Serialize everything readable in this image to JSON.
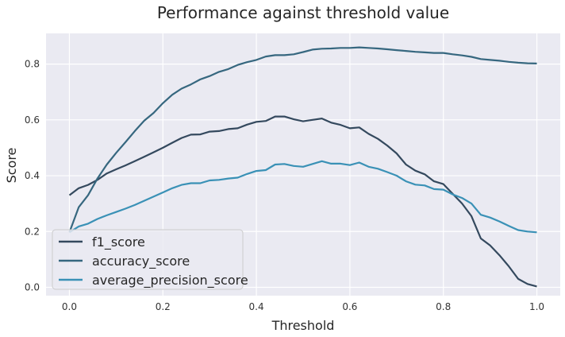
{
  "chart_data": {
    "type": "line",
    "title": "Performance against threshold value",
    "xlabel": "Threshold",
    "ylabel": "Score",
    "xlim": [
      -0.05,
      1.05
    ],
    "ylim": [
      -0.03,
      0.91
    ],
    "xticks": [
      0.0,
      0.2,
      0.4,
      0.6,
      0.8,
      1.0
    ],
    "xtick_labels": [
      "0.0",
      "0.2",
      "0.4",
      "0.6",
      "0.8",
      "1.0"
    ],
    "yticks": [
      0.0,
      0.2,
      0.4,
      0.6,
      0.8
    ],
    "ytick_labels": [
      "0.0",
      "0.2",
      "0.4",
      "0.6",
      "0.8"
    ],
    "grid": true,
    "legend_position": "bottom-left",
    "background": "#EAEAF2",
    "x": [
      0.0,
      0.02,
      0.04,
      0.06,
      0.08,
      0.1,
      0.12,
      0.14,
      0.16,
      0.18,
      0.2,
      0.22,
      0.24,
      0.26,
      0.28,
      0.3,
      0.32,
      0.34,
      0.36,
      0.38,
      0.4,
      0.42,
      0.44,
      0.46,
      0.48,
      0.5,
      0.52,
      0.54,
      0.56,
      0.58,
      0.6,
      0.62,
      0.64,
      0.66,
      0.68,
      0.7,
      0.72,
      0.74,
      0.76,
      0.78,
      0.8,
      0.82,
      0.84,
      0.86,
      0.88,
      0.9,
      0.92,
      0.94,
      0.96,
      0.98,
      1.0
    ],
    "series": [
      {
        "name": "f1_score",
        "color": "#34495E",
        "values": [
          0.33,
          0.355,
          0.367,
          0.385,
          0.408,
          0.423,
          0.437,
          0.452,
          0.468,
          0.484,
          0.5,
          0.518,
          0.535,
          0.547,
          0.548,
          0.558,
          0.56,
          0.567,
          0.57,
          0.583,
          0.593,
          0.596,
          0.612,
          0.612,
          0.602,
          0.595,
          0.6,
          0.605,
          0.59,
          0.582,
          0.57,
          0.573,
          0.55,
          0.532,
          0.508,
          0.48,
          0.44,
          0.418,
          0.405,
          0.38,
          0.37,
          0.335,
          0.3,
          0.255,
          0.175,
          0.15,
          0.115,
          0.075,
          0.03,
          0.012,
          0.003
        ]
      },
      {
        "name": "accuracy_score",
        "color": "#36677F",
        "values": [
          0.197,
          0.287,
          0.33,
          0.39,
          0.44,
          0.482,
          0.52,
          0.56,
          0.597,
          0.625,
          0.66,
          0.69,
          0.712,
          0.727,
          0.745,
          0.757,
          0.772,
          0.782,
          0.797,
          0.807,
          0.815,
          0.827,
          0.832,
          0.832,
          0.835,
          0.843,
          0.852,
          0.855,
          0.856,
          0.858,
          0.858,
          0.86,
          0.858,
          0.856,
          0.853,
          0.85,
          0.847,
          0.844,
          0.842,
          0.84,
          0.84,
          0.835,
          0.831,
          0.826,
          0.818,
          0.815,
          0.812,
          0.808,
          0.805,
          0.803,
          0.802
        ]
      },
      {
        "name": "average_precision_score",
        "color": "#3A91B6",
        "values": [
          0.197,
          0.218,
          0.228,
          0.245,
          0.258,
          0.27,
          0.282,
          0.295,
          0.31,
          0.325,
          0.34,
          0.355,
          0.367,
          0.373,
          0.373,
          0.383,
          0.385,
          0.39,
          0.393,
          0.406,
          0.417,
          0.42,
          0.44,
          0.442,
          0.435,
          0.432,
          0.442,
          0.452,
          0.443,
          0.443,
          0.438,
          0.447,
          0.432,
          0.425,
          0.413,
          0.4,
          0.38,
          0.368,
          0.365,
          0.352,
          0.35,
          0.333,
          0.32,
          0.3,
          0.26,
          0.25,
          0.236,
          0.22,
          0.205,
          0.2,
          0.197
        ]
      }
    ]
  }
}
